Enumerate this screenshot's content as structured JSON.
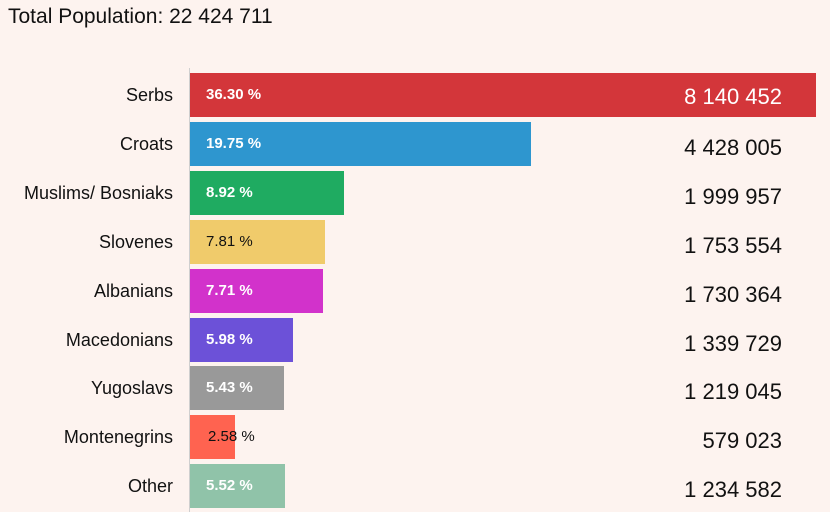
{
  "title": "Total Population: 22 424 711",
  "chart_data": {
    "type": "bar",
    "orientation": "horizontal",
    "title": "Total Population: 22 424 711",
    "categories": [
      "Serbs",
      "Croats",
      "Muslims/ Bosniaks",
      "Slovenes",
      "Albanians",
      "Macedonians",
      "Yugoslavs",
      "Montenegrins",
      "Other"
    ],
    "percent_labels": [
      "36.30 %",
      "19.75 %",
      "8.92 %",
      "7.81 %",
      "7.71 %",
      "5.98 %",
      "5.43 %",
      "2.58 %",
      "5.52 %"
    ],
    "value_labels": [
      "8 140 452",
      "4 428 005",
      "1 999 957",
      "1 753 554",
      "1 730 364",
      "1 339 729",
      "1 219 045",
      "579 023",
      "1 234 582"
    ],
    "values": [
      8140452,
      4428005,
      1999957,
      1753554,
      1730364,
      1339729,
      1219045,
      579023,
      1234582
    ],
    "colors": [
      "#d3363a",
      "#2e96cf",
      "#1fab61",
      "#f0cb6b",
      "#d232cb",
      "#6c51d8",
      "#999999",
      "#ff6350",
      "#90c3a9"
    ],
    "dark_label_indices": [
      3,
      7
    ],
    "legend": "none",
    "grid": false
  }
}
